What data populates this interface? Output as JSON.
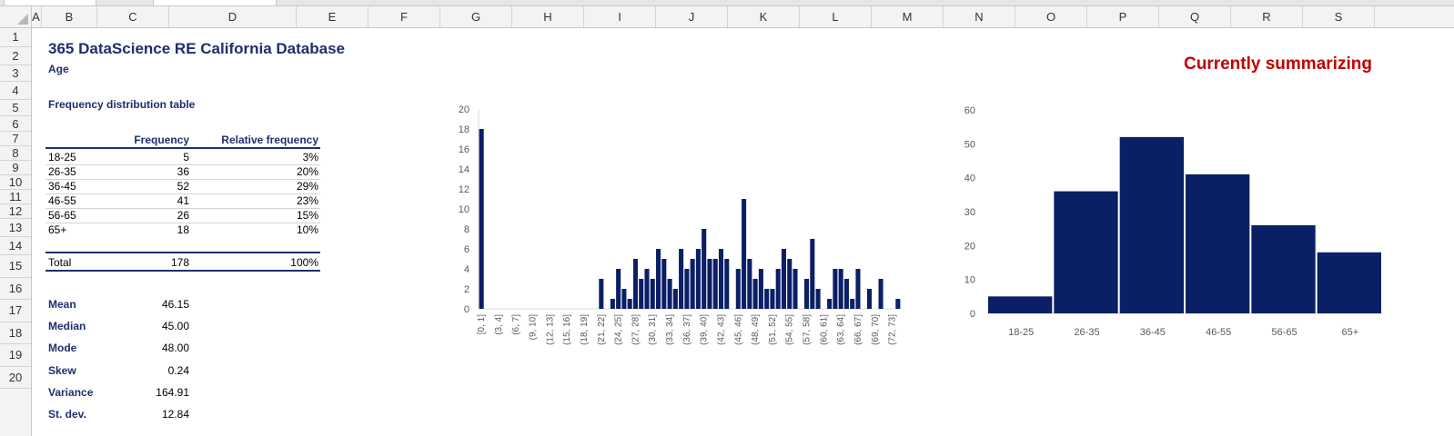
{
  "columns": [
    "A",
    "B",
    "C",
    "D",
    "E",
    "F",
    "G",
    "H",
    "I",
    "J",
    "K",
    "L",
    "M",
    "N",
    "O",
    "P",
    "Q",
    "R",
    "S"
  ],
  "rows": [
    "1",
    "2",
    "3",
    "4",
    "5",
    "6",
    "7",
    "8",
    "9",
    "10",
    "11",
    "12",
    "13",
    "14",
    "15",
    "16",
    "17",
    "18",
    "19",
    "20"
  ],
  "sheet": {
    "title": "365 DataScience RE California Database",
    "subtitle": "Age",
    "currently": "Currently summarizing",
    "freq_table_title": "Frequency distribution table",
    "header_frequency": "Frequency",
    "header_relative": "Relative frequency",
    "table_rows": [
      {
        "range": "18-25",
        "freq": "5",
        "rel": "3%"
      },
      {
        "range": "26-35",
        "freq": "36",
        "rel": "20%"
      },
      {
        "range": "36-45",
        "freq": "52",
        "rel": "29%"
      },
      {
        "range": "46-55",
        "freq": "41",
        "rel": "23%"
      },
      {
        "range": "56-65",
        "freq": "26",
        "rel": "15%"
      },
      {
        "range": "65+",
        "freq": "18",
        "rel": "10%"
      }
    ],
    "total": {
      "label": "Total",
      "freq": "178",
      "rel": "100%"
    },
    "stats": [
      {
        "label": "Mean",
        "value": "46.15"
      },
      {
        "label": "Median",
        "value": "45.00"
      },
      {
        "label": "Mode",
        "value": "48.00"
      },
      {
        "label": "Skew",
        "value": "0.24"
      },
      {
        "label": "Variance",
        "value": "164.91"
      },
      {
        "label": "St. dev.",
        "value": "12.84"
      }
    ]
  },
  "chart_data": [
    {
      "type": "bar",
      "title": "",
      "xlabel": "",
      "ylabel": "",
      "ylim": [
        0,
        20
      ],
      "yticks": [
        0,
        2,
        4,
        6,
        8,
        10,
        12,
        14,
        16,
        18,
        20
      ],
      "color": "#0b1f66",
      "labeled_categories": [
        "[0, 1]",
        "(3, 4]",
        "(6, 7]",
        "(9, 10]",
        "(12, 13]",
        "(15, 16]",
        "(18, 19]",
        "(21, 22]",
        "(24, 25]",
        "(27, 28]",
        "(30, 31]",
        "(33, 34]",
        "(36, 37]",
        "(39, 40]",
        "(42, 43]",
        "(45, 46]",
        "(48, 49]",
        "(51, 52]",
        "(54, 55]",
        "(57, 58]",
        "(60, 61]",
        "(63, 64]",
        "(66, 67]",
        "(69, 70]",
        "(72, 73]"
      ],
      "values": [
        18,
        0,
        0,
        0,
        0,
        0,
        0,
        0,
        0,
        0,
        0,
        0,
        0,
        0,
        0,
        0,
        0,
        0,
        0,
        0,
        0,
        3,
        0,
        1,
        4,
        2,
        1,
        5,
        3,
        4,
        3,
        6,
        5,
        3,
        2,
        6,
        4,
        5,
        6,
        8,
        5,
        5,
        6,
        5,
        0,
        4,
        11,
        5,
        3,
        4,
        2,
        2,
        4,
        6,
        5,
        4,
        0,
        3,
        7,
        2,
        0,
        1,
        4,
        4,
        3,
        1,
        4,
        0,
        2,
        0,
        3,
        0,
        0,
        1
      ]
    },
    {
      "type": "bar",
      "title": "",
      "xlabel": "",
      "ylabel": "",
      "ylim": [
        0,
        60
      ],
      "yticks": [
        0,
        10,
        20,
        30,
        40,
        50,
        60
      ],
      "color": "#0b1f66",
      "categories": [
        "18-25",
        "26-35",
        "36-45",
        "46-55",
        "56-65",
        "65+"
      ],
      "values": [
        5,
        36,
        52,
        41,
        26,
        18
      ]
    }
  ]
}
